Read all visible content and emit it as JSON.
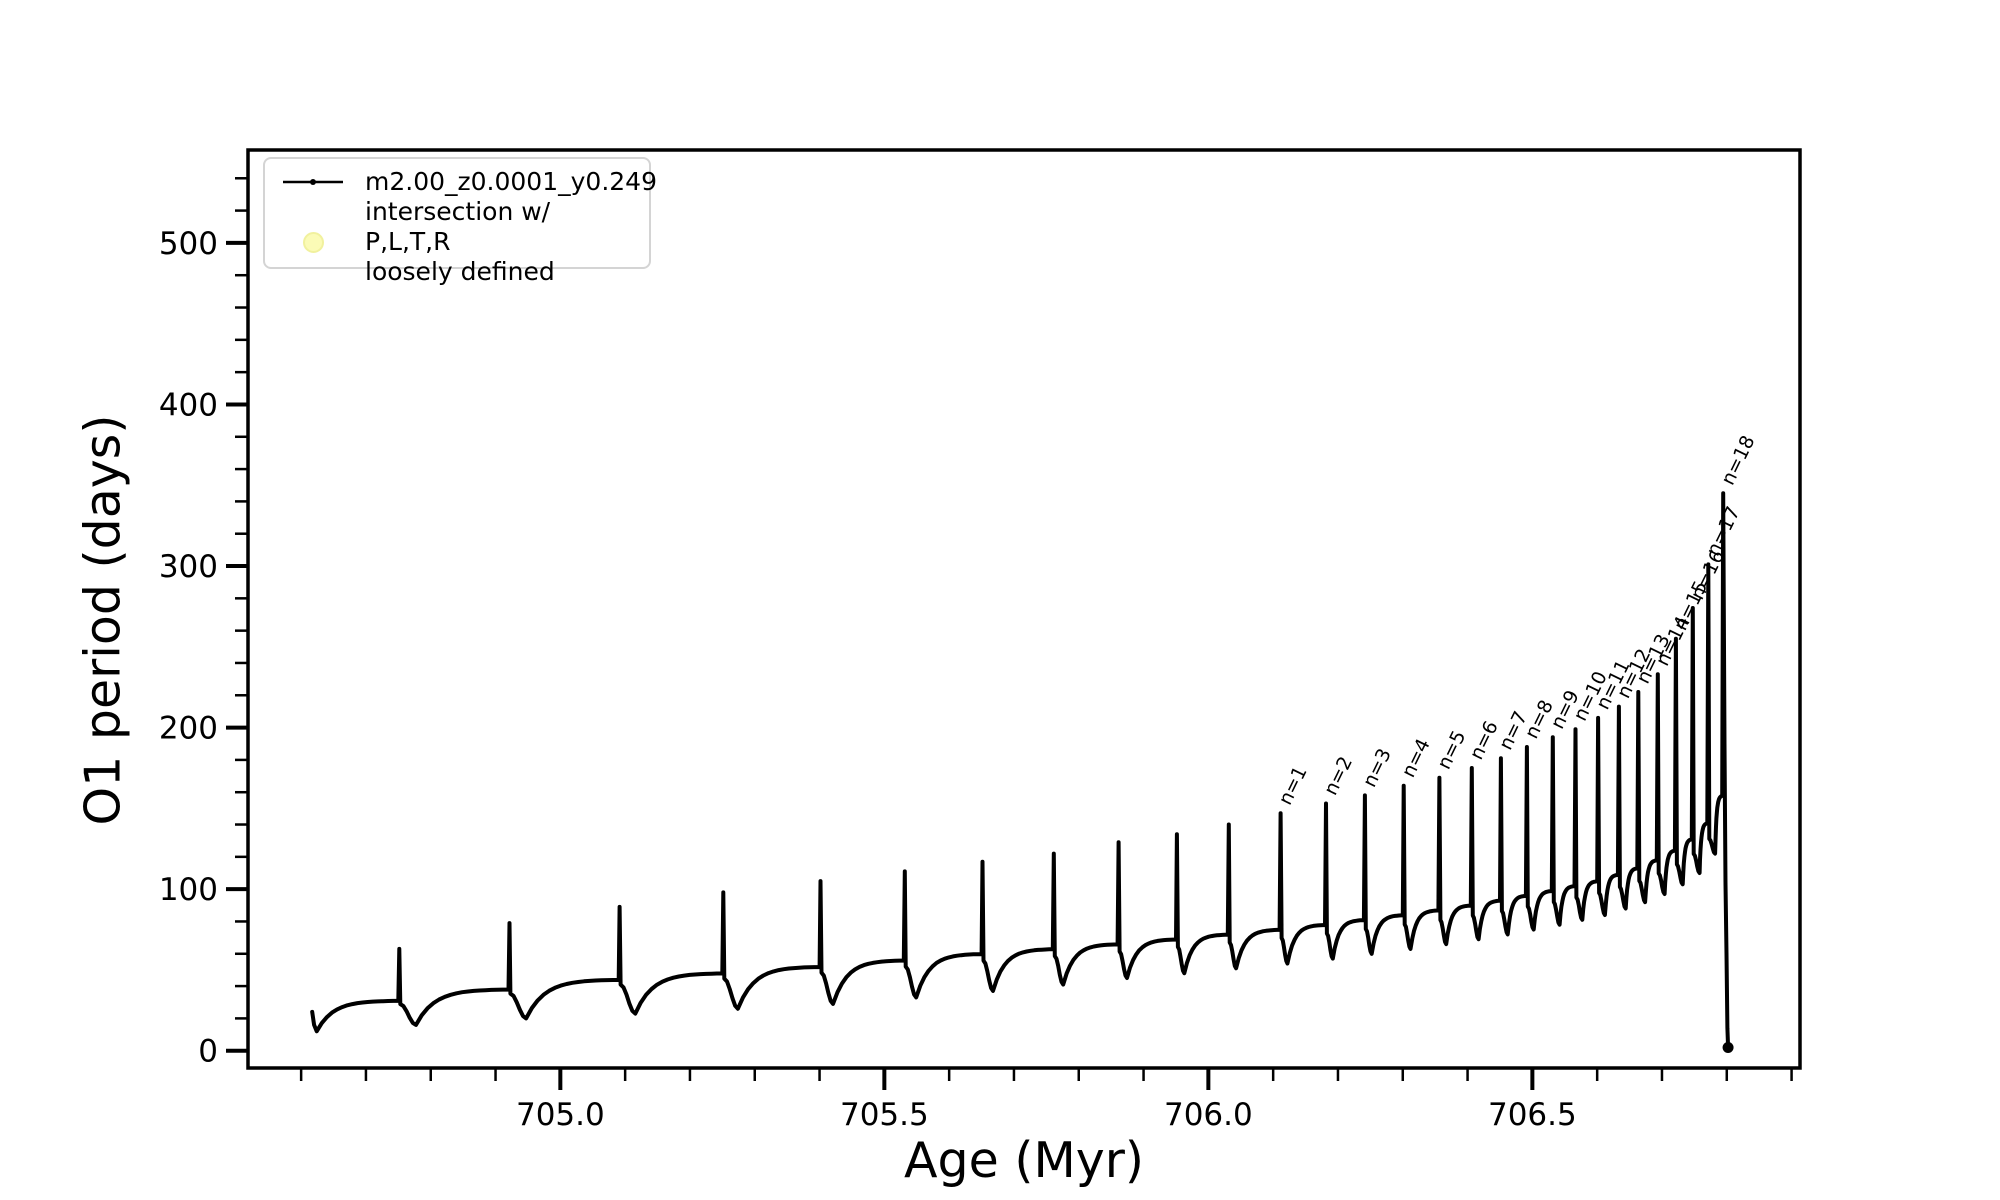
{
  "figure": {
    "xlabel": "Age (Myr)",
    "ylabel": "O1 period (days)",
    "background": "#ffffff",
    "line_color": "#000000",
    "axis_color": "#000000"
  },
  "legend": {
    "items": [
      {
        "label": "m2.00_z0.0001_y0.249",
        "marker": "line-with-dot",
        "color": "#000000"
      },
      {
        "label": "intersection w/ P,L,T,R\nloosely defined",
        "marker": "circle",
        "color": "#fbfbb6"
      }
    ]
  },
  "chart_data": {
    "type": "line",
    "title": "",
    "xlabel": "Age (Myr)",
    "ylabel": "O1 period (days)",
    "series_name": "m2.00_z0.0001_y0.249",
    "xlim": [
      704.518,
      706.913
    ],
    "ylim": [
      -10.7,
      557.5
    ],
    "xticks": [
      705.0,
      705.5,
      706.0,
      706.5
    ],
    "xtick_labels": [
      "705.0",
      "705.5",
      "706.0",
      "706.5"
    ],
    "yticks": [
      0,
      100,
      200,
      300,
      400,
      500
    ],
    "ytick_labels": [
      "0",
      "100",
      "200",
      "300",
      "400",
      "500"
    ],
    "x_minor_step": 0.1,
    "y_minor_step": 20,
    "grid": false,
    "legend_position": "upper left",
    "start": {
      "age": 704.617,
      "value": 24,
      "dip": 12
    },
    "end_drop": {
      "age": 706.802,
      "value": 2
    },
    "pulses": [
      {
        "age": 704.75,
        "peak": 63,
        "base": 31,
        "dip": 16,
        "label": null
      },
      {
        "age": 704.92,
        "peak": 79,
        "base": 38,
        "dip": 20,
        "label": null
      },
      {
        "age": 705.09,
        "peak": 89,
        "base": 44,
        "dip": 23,
        "label": null
      },
      {
        "age": 705.25,
        "peak": 98,
        "base": 48,
        "dip": 26,
        "label": null
      },
      {
        "age": 705.4,
        "peak": 105,
        "base": 52,
        "dip": 29,
        "label": null
      },
      {
        "age": 705.53,
        "peak": 111,
        "base": 56,
        "dip": 33,
        "label": null
      },
      {
        "age": 705.65,
        "peak": 117,
        "base": 60,
        "dip": 37,
        "label": null
      },
      {
        "age": 705.76,
        "peak": 122,
        "base": 63,
        "dip": 41,
        "label": null
      },
      {
        "age": 705.86,
        "peak": 129,
        "base": 66,
        "dip": 45,
        "label": null
      },
      {
        "age": 705.95,
        "peak": 134,
        "base": 69,
        "dip": 48,
        "label": null
      },
      {
        "age": 706.03,
        "peak": 140,
        "base": 72,
        "dip": 51,
        "label": null
      },
      {
        "age": 706.11,
        "peak": 147,
        "base": 75,
        "dip": 54,
        "label": "n=1"
      },
      {
        "age": 706.18,
        "peak": 153,
        "base": 78,
        "dip": 57,
        "label": "n=2"
      },
      {
        "age": 706.24,
        "peak": 158,
        "base": 81,
        "dip": 60,
        "label": "n=3"
      },
      {
        "age": 706.3,
        "peak": 164,
        "base": 84,
        "dip": 63,
        "label": "n=4"
      },
      {
        "age": 706.355,
        "peak": 169,
        "base": 87,
        "dip": 66,
        "label": "n=5"
      },
      {
        "age": 706.405,
        "peak": 175,
        "base": 90,
        "dip": 69,
        "label": "n=6"
      },
      {
        "age": 706.45,
        "peak": 181,
        "base": 93,
        "dip": 72,
        "label": "n=7"
      },
      {
        "age": 706.49,
        "peak": 188,
        "base": 96,
        "dip": 75,
        "label": "n=8"
      },
      {
        "age": 706.53,
        "peak": 194,
        "base": 99,
        "dip": 78,
        "label": "n=9"
      },
      {
        "age": 706.565,
        "peak": 199,
        "base": 102,
        "dip": 81,
        "label": "n=10"
      },
      {
        "age": 706.6,
        "peak": 206,
        "base": 105,
        "dip": 84,
        "label": "n=11"
      },
      {
        "age": 706.632,
        "peak": 213,
        "base": 109,
        "dip": 88,
        "label": "n=12"
      },
      {
        "age": 706.662,
        "peak": 222,
        "base": 113,
        "dip": 92,
        "label": "n=13"
      },
      {
        "age": 706.692,
        "peak": 233,
        "base": 118,
        "dip": 97,
        "label": "n=14"
      },
      {
        "age": 706.72,
        "peak": 255,
        "base": 124,
        "dip": 103,
        "label": "n=15"
      },
      {
        "age": 706.746,
        "peak": 274,
        "base": 131,
        "dip": 110,
        "label": "n=16"
      },
      {
        "age": 706.77,
        "peak": 301,
        "base": 141,
        "dip": 122,
        "label": "n=17"
      },
      {
        "age": 706.793,
        "peak": 345,
        "base": 158,
        "dip": null,
        "label": "n=18"
      }
    ],
    "intersection_points": []
  }
}
